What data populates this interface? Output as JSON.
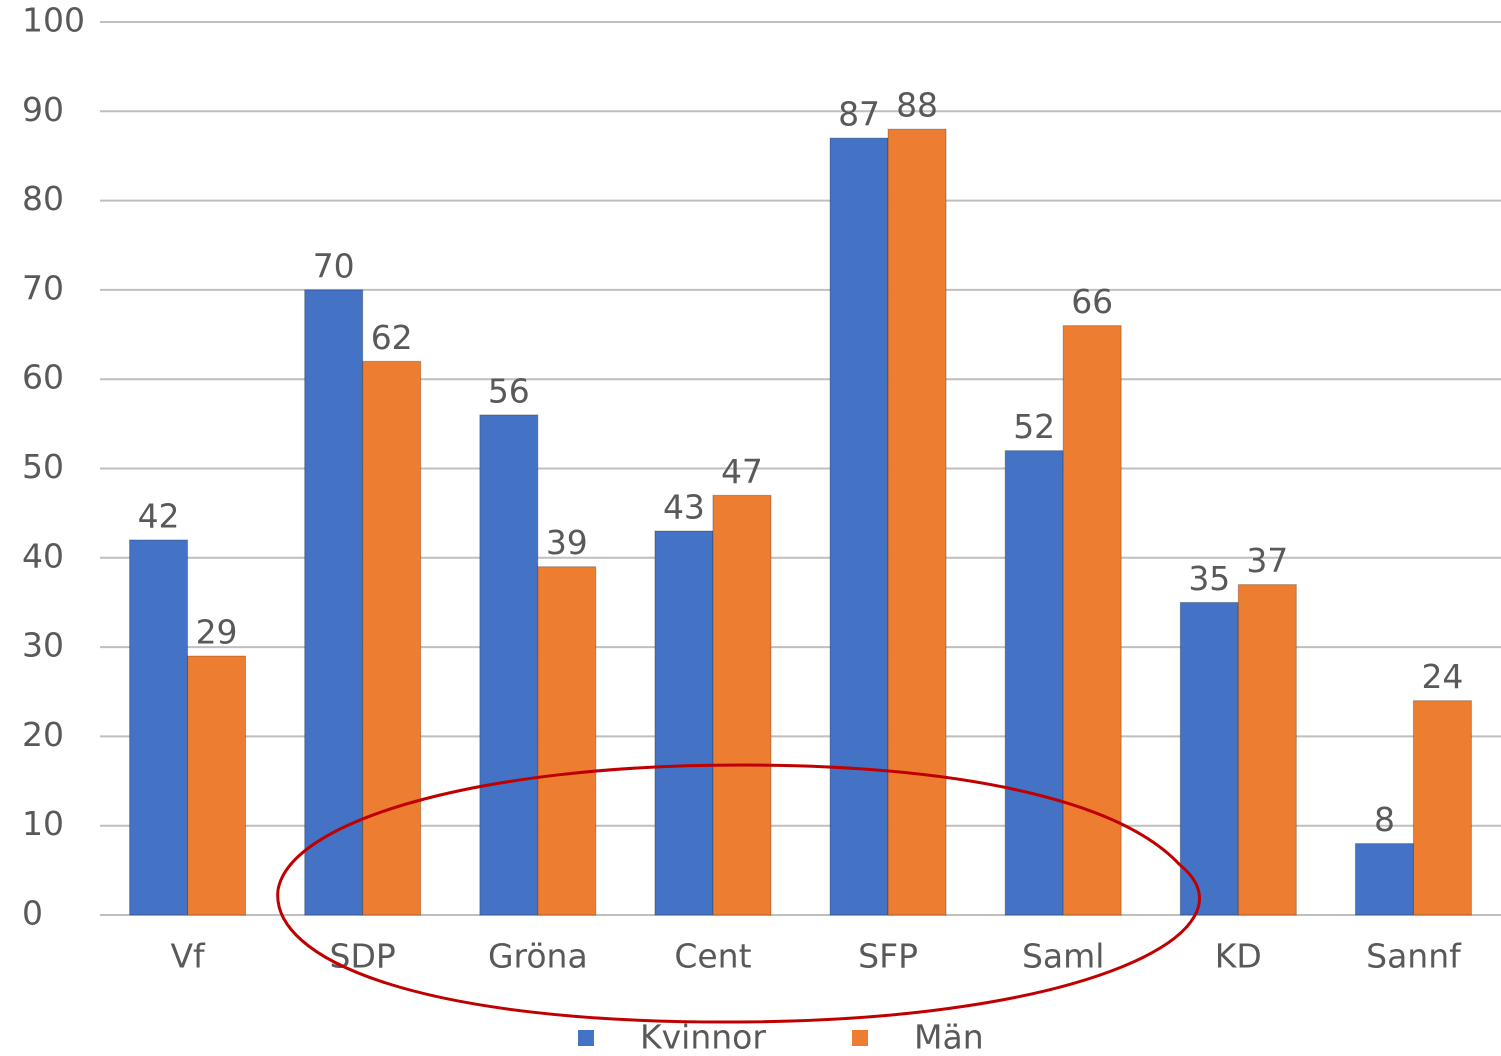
{
  "chart_data": {
    "type": "bar",
    "categories": [
      "Vf",
      "SDP",
      "Gröna",
      "Cent",
      "SFP",
      "Saml",
      "KD",
      "Sannf"
    ],
    "series": [
      {
        "name": "Kvinnor",
        "color": "#4472c4",
        "values": [
          42,
          70,
          56,
          43,
          87,
          52,
          35,
          8
        ]
      },
      {
        "name": "Män",
        "color": "#ed7d31",
        "values": [
          29,
          62,
          39,
          47,
          88,
          66,
          37,
          24
        ]
      }
    ],
    "ylim": [
      0,
      100
    ],
    "yticks": [
      0,
      10,
      20,
      30,
      40,
      50,
      60,
      70,
      80,
      90,
      100
    ],
    "grid": true,
    "legend": "bottom"
  }
}
